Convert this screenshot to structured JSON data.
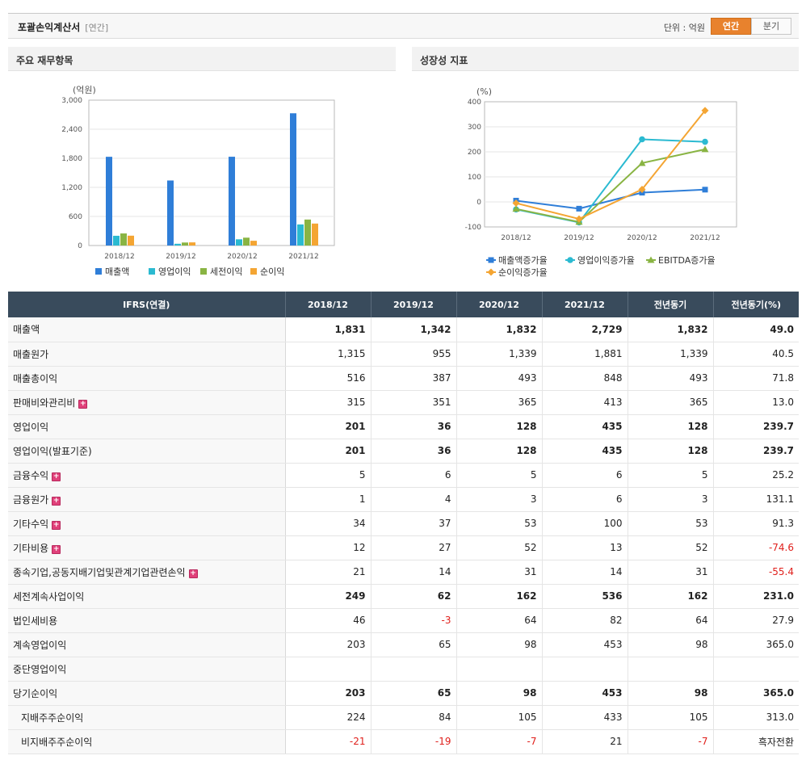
{
  "header": {
    "title": "포괄손익계산서",
    "subtitle": "[연간]",
    "unit_label": "단위 : 억원",
    "tab_annual": "연간",
    "tab_quarter": "분기"
  },
  "panels": {
    "left_title": "주요 재무항목",
    "right_title": "성장성 지표"
  },
  "colors": {
    "sales": "#2f7ed8",
    "op_income": "#2bbad1",
    "pretax": "#89b443",
    "net": "#f4a533",
    "header_bg": "#394b5c",
    "active_tab": "#e8822d",
    "negative": "#e0201c"
  },
  "chart_data": [
    {
      "type": "bar",
      "unit_label": "(억원)",
      "categories": [
        "2018/12",
        "2019/12",
        "2020/12",
        "2021/12"
      ],
      "ylim": [
        0,
        3000
      ],
      "yticks": [
        "3,000",
        "2,400",
        "1,800",
        "1,200",
        "600",
        "0"
      ],
      "ytick_values": [
        3000,
        2400,
        1800,
        1200,
        600,
        0
      ],
      "series": [
        {
          "name": "매출액",
          "color": "#2f7ed8",
          "values": [
            1831,
            1342,
            1832,
            2729
          ]
        },
        {
          "name": "영업이익",
          "color": "#2bbad1",
          "values": [
            201,
            36,
            128,
            435
          ]
        },
        {
          "name": "세전이익",
          "color": "#89b443",
          "values": [
            249,
            62,
            162,
            536
          ]
        },
        {
          "name": "순이익",
          "color": "#f4a533",
          "values": [
            203,
            65,
            98,
            453
          ]
        }
      ],
      "grid": true,
      "legend": "bottom"
    },
    {
      "type": "line",
      "unit_label": "(%)",
      "categories": [
        "2018/12",
        "2019/12",
        "2020/12",
        "2021/12"
      ],
      "ylim": [
        -100,
        400
      ],
      "yticks": [
        "400",
        "300",
        "200",
        "100",
        "0",
        "-100"
      ],
      "ytick_values": [
        400,
        300,
        200,
        100,
        0,
        -100
      ],
      "series": [
        {
          "name": "매출액증가율",
          "color": "#2f7ed8",
          "marker": "square",
          "values": [
            5,
            -27,
            37,
            49
          ]
        },
        {
          "name": "영업이익증가율",
          "color": "#2bbad1",
          "marker": "circle",
          "values": [
            -30,
            -82,
            250,
            240
          ]
        },
        {
          "name": "EBITDA증가율",
          "color": "#89b443",
          "marker": "triangle",
          "values": [
            -28,
            -80,
            155,
            210
          ]
        },
        {
          "name": "순이익증가율",
          "color": "#f4a533",
          "marker": "diamond",
          "values": [
            -5,
            -68,
            50,
            365
          ]
        }
      ],
      "grid": true,
      "legend": "bottom"
    }
  ],
  "table": {
    "headers": [
      "IFRS(연결)",
      "2018/12",
      "2019/12",
      "2020/12",
      "2021/12",
      "전년동기",
      "전년동기(%)"
    ],
    "rows": [
      {
        "label": "매출액",
        "values": [
          "1,831",
          "1,342",
          "1,832",
          "2,729",
          "1,832",
          "49.0"
        ],
        "bold": true,
        "expand": false,
        "indent": false,
        "negative": [
          false,
          false,
          false,
          false,
          false,
          false
        ]
      },
      {
        "label": "매출원가",
        "values": [
          "1,315",
          "955",
          "1,339",
          "1,881",
          "1,339",
          "40.5"
        ],
        "bold": false,
        "expand": false,
        "indent": false,
        "negative": [
          false,
          false,
          false,
          false,
          false,
          false
        ]
      },
      {
        "label": "매출총이익",
        "values": [
          "516",
          "387",
          "493",
          "848",
          "493",
          "71.8"
        ],
        "bold": false,
        "expand": false,
        "indent": false,
        "negative": [
          false,
          false,
          false,
          false,
          false,
          false
        ]
      },
      {
        "label": "판매비와관리비",
        "values": [
          "315",
          "351",
          "365",
          "413",
          "365",
          "13.0"
        ],
        "bold": false,
        "expand": true,
        "indent": false,
        "negative": [
          false,
          false,
          false,
          false,
          false,
          false
        ]
      },
      {
        "label": "영업이익",
        "values": [
          "201",
          "36",
          "128",
          "435",
          "128",
          "239.7"
        ],
        "bold": true,
        "expand": false,
        "indent": false,
        "negative": [
          false,
          false,
          false,
          false,
          false,
          false
        ]
      },
      {
        "label": "영업이익(발표기준)",
        "values": [
          "201",
          "36",
          "128",
          "435",
          "128",
          "239.7"
        ],
        "bold": true,
        "expand": false,
        "indent": false,
        "negative": [
          false,
          false,
          false,
          false,
          false,
          false
        ]
      },
      {
        "label": "금융수익",
        "values": [
          "5",
          "6",
          "5",
          "6",
          "5",
          "25.2"
        ],
        "bold": false,
        "expand": true,
        "indent": false,
        "negative": [
          false,
          false,
          false,
          false,
          false,
          false
        ]
      },
      {
        "label": "금융원가",
        "values": [
          "1",
          "4",
          "3",
          "6",
          "3",
          "131.1"
        ],
        "bold": false,
        "expand": true,
        "indent": false,
        "negative": [
          false,
          false,
          false,
          false,
          false,
          false
        ]
      },
      {
        "label": "기타수익",
        "values": [
          "34",
          "37",
          "53",
          "100",
          "53",
          "91.3"
        ],
        "bold": false,
        "expand": true,
        "indent": false,
        "negative": [
          false,
          false,
          false,
          false,
          false,
          false
        ]
      },
      {
        "label": "기타비용",
        "values": [
          "12",
          "27",
          "52",
          "13",
          "52",
          "-74.6"
        ],
        "bold": false,
        "expand": true,
        "indent": false,
        "negative": [
          false,
          false,
          false,
          false,
          false,
          true
        ]
      },
      {
        "label": "종속기업,공동지배기업및관계기업관련손익",
        "values": [
          "21",
          "14",
          "31",
          "14",
          "31",
          "-55.4"
        ],
        "bold": false,
        "expand": true,
        "indent": false,
        "negative": [
          false,
          false,
          false,
          false,
          false,
          true
        ]
      },
      {
        "label": "세전계속사업이익",
        "values": [
          "249",
          "62",
          "162",
          "536",
          "162",
          "231.0"
        ],
        "bold": true,
        "expand": false,
        "indent": false,
        "negative": [
          false,
          false,
          false,
          false,
          false,
          false
        ]
      },
      {
        "label": "법인세비용",
        "values": [
          "46",
          "-3",
          "64",
          "82",
          "64",
          "27.9"
        ],
        "bold": false,
        "expand": false,
        "indent": false,
        "negative": [
          false,
          true,
          false,
          false,
          false,
          false
        ]
      },
      {
        "label": "계속영업이익",
        "values": [
          "203",
          "65",
          "98",
          "453",
          "98",
          "365.0"
        ],
        "bold": false,
        "expand": false,
        "indent": false,
        "negative": [
          false,
          false,
          false,
          false,
          false,
          false
        ]
      },
      {
        "label": "중단영업이익",
        "values": [
          "",
          "",
          "",
          "",
          "",
          ""
        ],
        "bold": false,
        "expand": false,
        "indent": false,
        "negative": [
          false,
          false,
          false,
          false,
          false,
          false
        ]
      },
      {
        "label": "당기순이익",
        "values": [
          "203",
          "65",
          "98",
          "453",
          "98",
          "365.0"
        ],
        "bold": true,
        "expand": false,
        "indent": false,
        "negative": [
          false,
          false,
          false,
          false,
          false,
          false
        ]
      },
      {
        "label": "지배주주순이익",
        "values": [
          "224",
          "84",
          "105",
          "433",
          "105",
          "313.0"
        ],
        "bold": false,
        "expand": false,
        "indent": true,
        "negative": [
          false,
          false,
          false,
          false,
          false,
          false
        ]
      },
      {
        "label": "비지배주주순이익",
        "values": [
          "-21",
          "-19",
          "-7",
          "21",
          "-7",
          "흑자전환"
        ],
        "bold": false,
        "expand": false,
        "indent": true,
        "negative": [
          true,
          true,
          true,
          false,
          true,
          false
        ]
      }
    ]
  }
}
